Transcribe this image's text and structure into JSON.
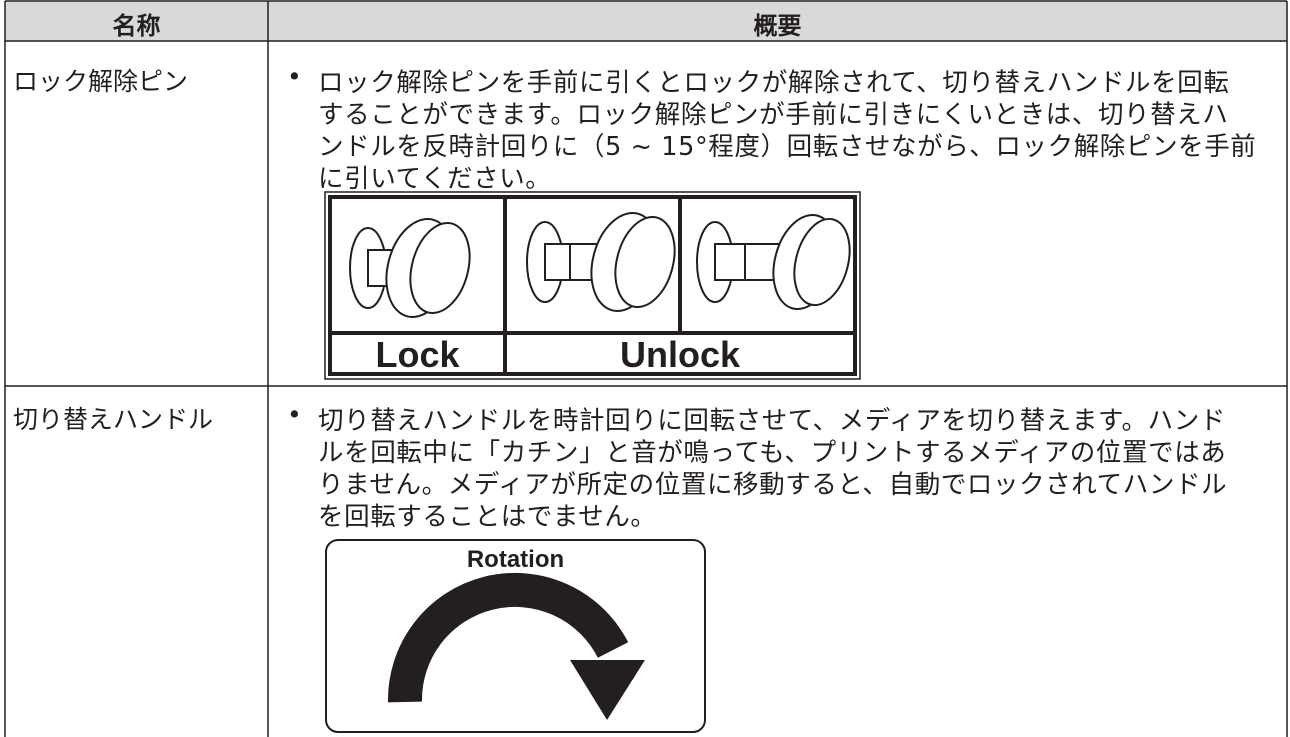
{
  "table": {
    "headers": [
      "名称",
      "概要"
    ],
    "rows": [
      {
        "name": "ロック解除ピン",
        "bullet": "•",
        "lines": [
          "ロック解除ピンを手前に引くとロックが解除されて、切り替えハンドルを回転",
          "することができます。ロック解除ピンが手前に引きにくいときは、切り替えハ",
          "ンドルを反時計回りに（5 ~ 15°程度）回転させながら、ロック解除ピンを手前",
          "に引いてください。"
        ],
        "figure_labels": [
          "Lock",
          "Unlock"
        ]
      },
      {
        "name": "切り替えハンドル",
        "bullet": "•",
        "lines": [
          "切り替えハンドルを時計回りに回転させて、メディアを切り替えます。ハンド",
          "ルを回転中に「カチン」と音が鳴っても、プリントするメディアの位置ではあ",
          "りません。メディアが所定の位置に移動すると、自動でロックされてハンドル",
          "を回転することはでません。"
        ],
        "figure_labels": [
          "Rotation"
        ]
      }
    ]
  }
}
